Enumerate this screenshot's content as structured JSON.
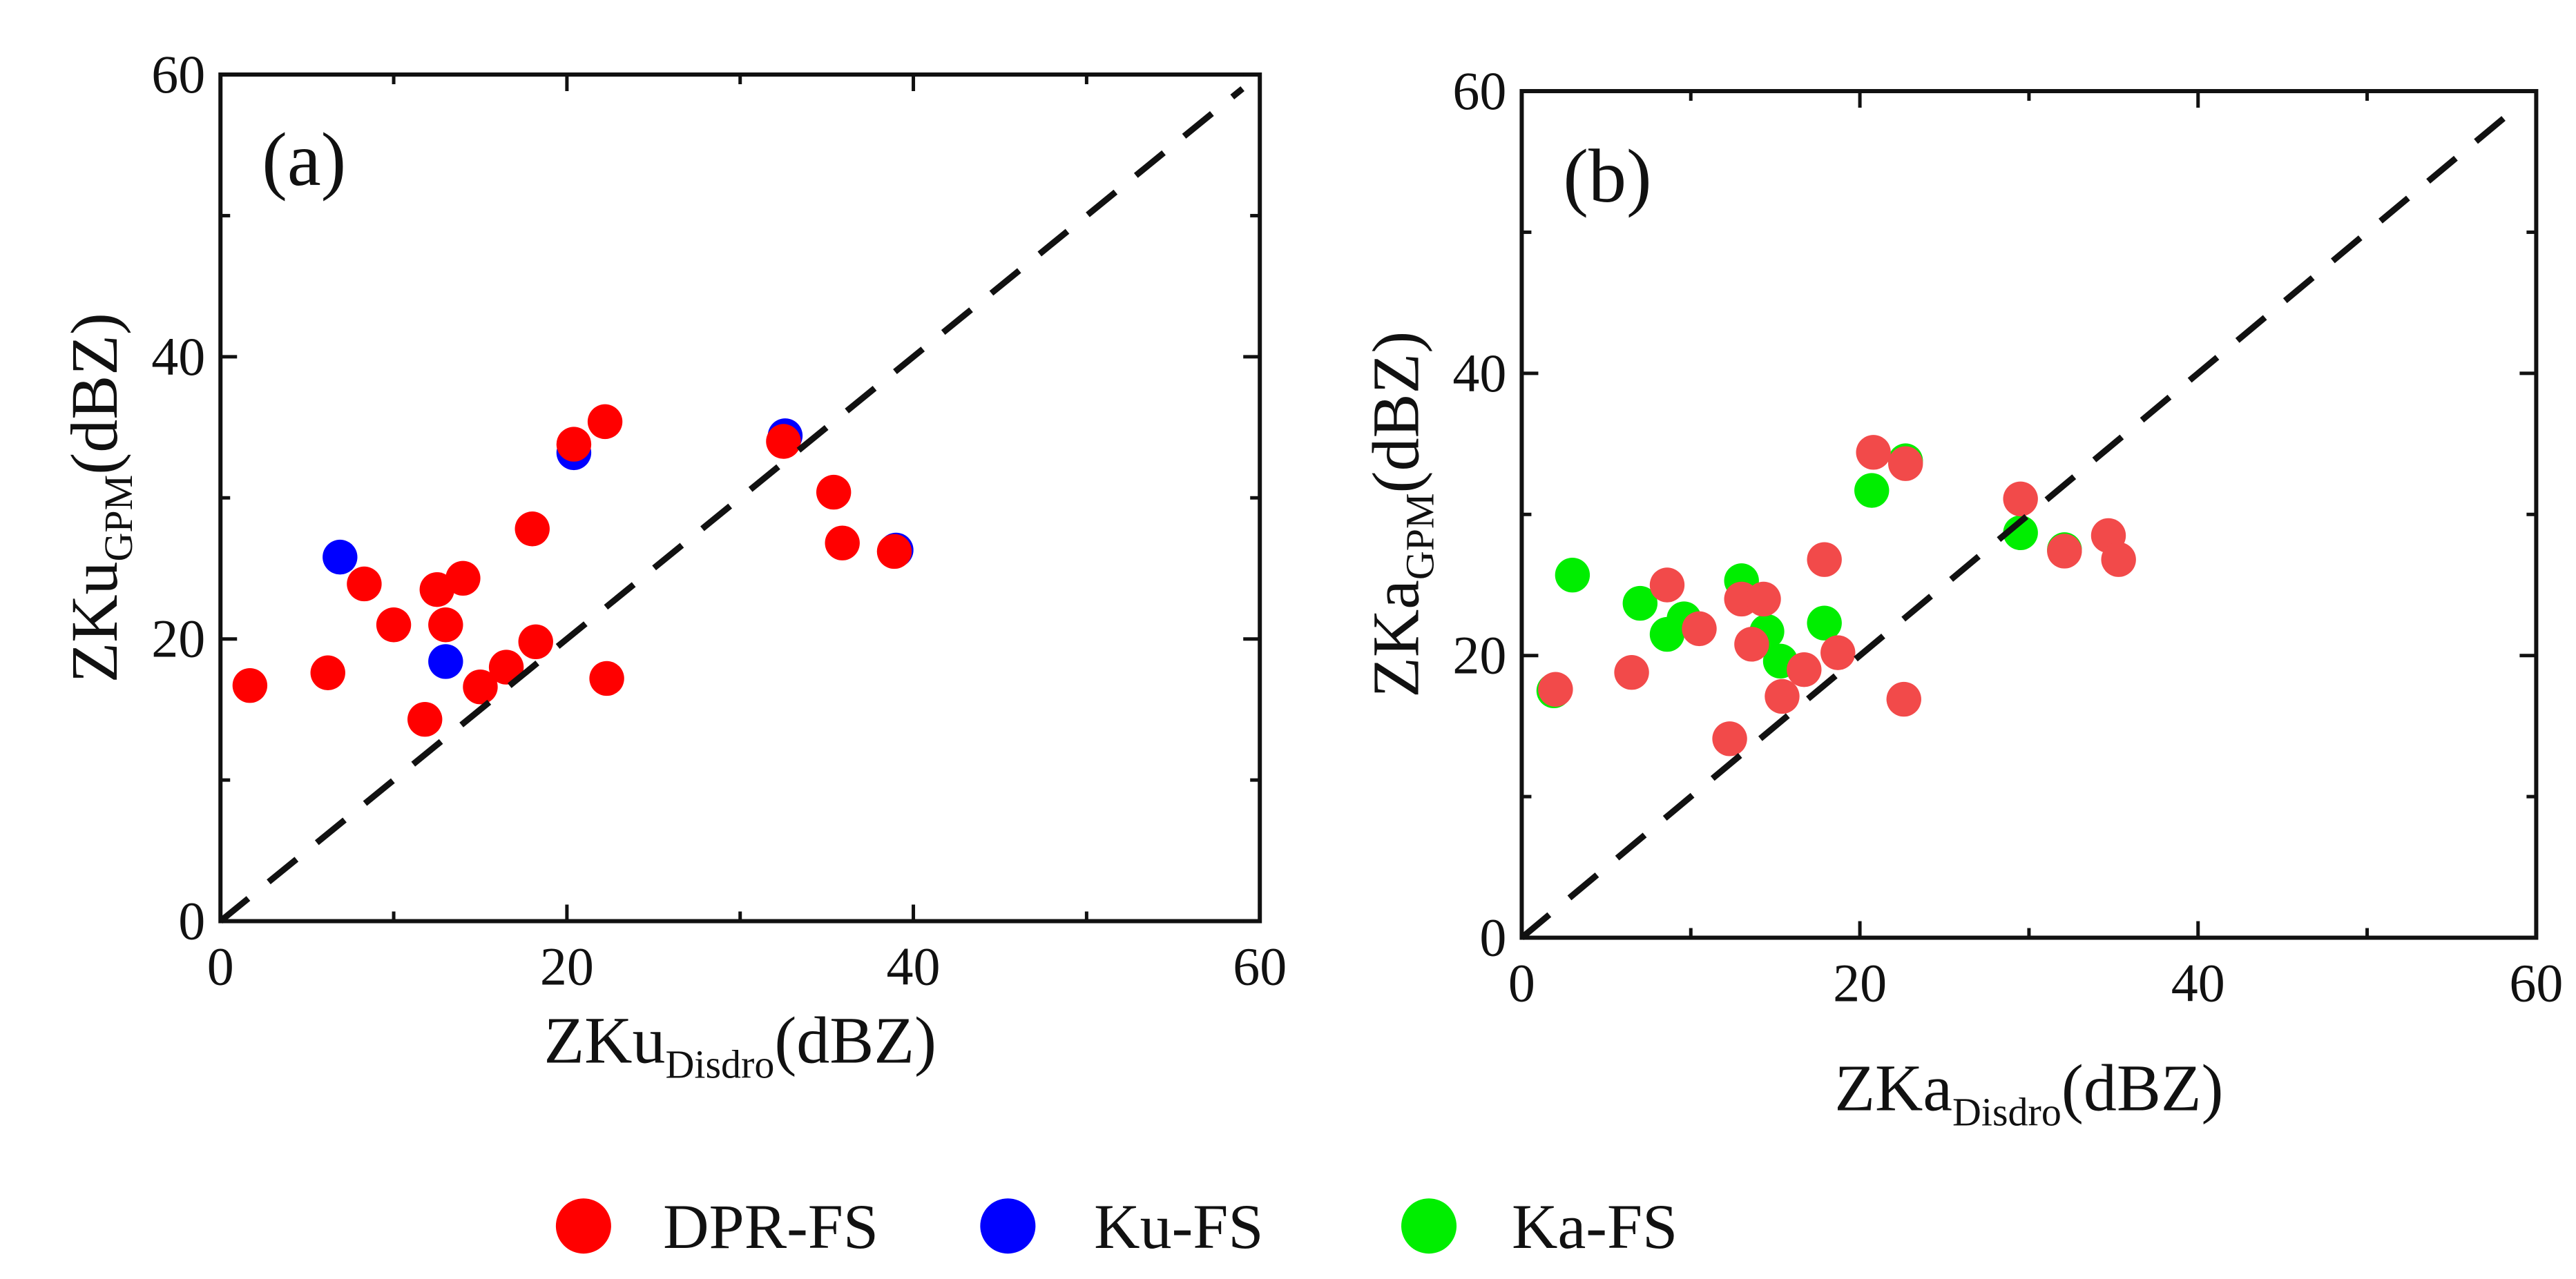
{
  "colors": {
    "DPR-FS": "#ff0000",
    "Ku-FS": "#0000ff",
    "Ka-FS": "#00ee00",
    "DPR-FS-b": "#f24a4a"
  },
  "legend": [
    {
      "key": "DPR-FS",
      "label": "DPR-FS"
    },
    {
      "key": "Ku-FS",
      "label": "Ku-FS"
    },
    {
      "key": "Ka-FS",
      "label": "Ka-FS"
    }
  ],
  "chart_data": [
    {
      "type": "scatter",
      "panel_label": "(a)",
      "xlabel_main": "ZKu",
      "xlabel_sub": "Disdro",
      "xlabel_unit": "(dBZ)",
      "ylabel_main": "ZKu",
      "ylabel_sub": "GPM",
      "ylabel_unit": "(dBZ)",
      "xlim": [
        0,
        60
      ],
      "ylim": [
        0,
        60
      ],
      "xticks": [
        "0",
        "20",
        "40",
        "60"
      ],
      "yticks": [
        "0",
        "20",
        "40",
        "60"
      ],
      "reference_line": "1:1 dashed",
      "series": [
        {
          "key": "Ku-FS",
          "points": [
            [
              6.9,
              25.8
            ],
            [
              13.0,
              18.4
            ],
            [
              20.4,
              33.2
            ],
            [
              32.6,
              34.4
            ],
            [
              39.0,
              26.3
            ]
          ]
        },
        {
          "key": "DPR-FS",
          "points": [
            [
              1.7,
              16.7
            ],
            [
              6.2,
              17.6
            ],
            [
              8.3,
              23.9
            ],
            [
              10.0,
              21.0
            ],
            [
              11.8,
              14.3
            ],
            [
              12.5,
              23.5
            ],
            [
              13.0,
              21.0
            ],
            [
              14.0,
              24.3
            ],
            [
              15.0,
              16.6
            ],
            [
              16.5,
              18.0
            ],
            [
              18.0,
              27.8
            ],
            [
              18.2,
              19.8
            ],
            [
              20.4,
              33.8
            ],
            [
              22.2,
              35.4
            ],
            [
              22.3,
              17.2
            ],
            [
              32.5,
              34.0
            ],
            [
              35.4,
              30.4
            ],
            [
              35.9,
              26.8
            ],
            [
              38.9,
              26.2
            ]
          ]
        }
      ]
    },
    {
      "type": "scatter",
      "panel_label": "(b)",
      "xlabel_main": "ZKa",
      "xlabel_sub": "Disdro",
      "xlabel_unit": "(dBZ)",
      "ylabel_main": "ZKa",
      "ylabel_sub": "GPM",
      "ylabel_unit": "(dBZ)",
      "xlim": [
        0,
        60
      ],
      "ylim": [
        0,
        60
      ],
      "xticks": [
        "0",
        "20",
        "40",
        "60"
      ],
      "yticks": [
        "0",
        "20",
        "40",
        "60"
      ],
      "reference_line": "1:1 dashed",
      "series": [
        {
          "key": "Ka-FS",
          "points": [
            [
              1.9,
              17.5
            ],
            [
              3.0,
              25.7
            ],
            [
              7.0,
              23.7
            ],
            [
              8.6,
              21.5
            ],
            [
              9.6,
              22.6
            ],
            [
              13.0,
              25.3
            ],
            [
              14.5,
              21.7
            ],
            [
              15.3,
              19.6
            ],
            [
              17.9,
              22.3
            ],
            [
              20.7,
              31.7
            ],
            [
              22.7,
              33.8
            ],
            [
              29.5,
              28.7
            ],
            [
              32.1,
              27.5
            ]
          ]
        },
        {
          "key": "DPR-FS-b",
          "points": [
            [
              2.0,
              17.6
            ],
            [
              6.5,
              18.8
            ],
            [
              8.6,
              25.0
            ],
            [
              10.5,
              21.9
            ],
            [
              12.3,
              14.1
            ],
            [
              13.0,
              24.0
            ],
            [
              13.6,
              20.8
            ],
            [
              14.3,
              24.0
            ],
            [
              15.4,
              17.1
            ],
            [
              16.7,
              19.0
            ],
            [
              17.9,
              26.8
            ],
            [
              18.7,
              20.2
            ],
            [
              20.8,
              34.4
            ],
            [
              22.6,
              16.9
            ],
            [
              22.7,
              33.6
            ],
            [
              29.5,
              31.1
            ],
            [
              32.1,
              27.4
            ],
            [
              34.7,
              28.5
            ],
            [
              35.3,
              26.8
            ]
          ]
        }
      ]
    }
  ]
}
